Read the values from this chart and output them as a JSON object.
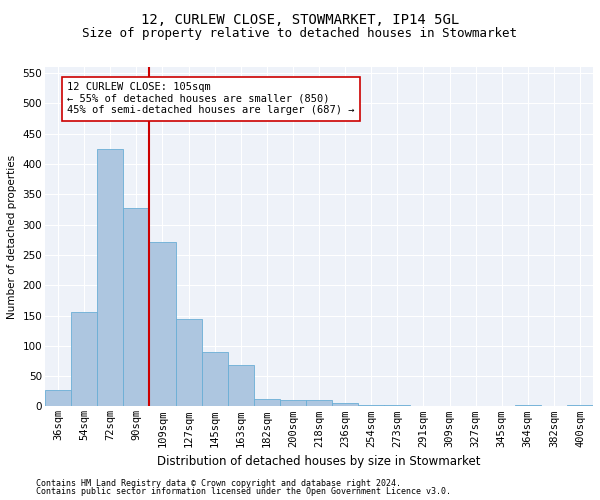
{
  "title1": "12, CURLEW CLOSE, STOWMARKET, IP14 5GL",
  "title2": "Size of property relative to detached houses in Stowmarket",
  "xlabel": "Distribution of detached houses by size in Stowmarket",
  "ylabel": "Number of detached properties",
  "categories": [
    "36sqm",
    "54sqm",
    "72sqm",
    "90sqm",
    "109sqm",
    "127sqm",
    "145sqm",
    "163sqm",
    "182sqm",
    "200sqm",
    "218sqm",
    "236sqm",
    "254sqm",
    "273sqm",
    "291sqm",
    "309sqm",
    "327sqm",
    "345sqm",
    "364sqm",
    "382sqm",
    "400sqm"
  ],
  "values": [
    27,
    155,
    425,
    327,
    271,
    145,
    90,
    68,
    13,
    10,
    10,
    5,
    2,
    2,
    1,
    1,
    0,
    0,
    3,
    0,
    3
  ],
  "bar_color": "#adc6e0",
  "bar_edge_color": "#6aaed6",
  "vline_color": "#cc0000",
  "annotation_text": "12 CURLEW CLOSE: 105sqm\n← 55% of detached houses are smaller (850)\n45% of semi-detached houses are larger (687) →",
  "ylim": [
    0,
    560
  ],
  "yticks": [
    0,
    50,
    100,
    150,
    200,
    250,
    300,
    350,
    400,
    450,
    500,
    550
  ],
  "footer1": "Contains HM Land Registry data © Crown copyright and database right 2024.",
  "footer2": "Contains public sector information licensed under the Open Government Licence v3.0.",
  "bg_color": "#eef2f9",
  "grid_color": "#ffffff",
  "title1_fontsize": 10,
  "title2_fontsize": 9,
  "axis_fontsize": 7.5,
  "ylabel_fontsize": 7.5,
  "xlabel_fontsize": 8.5,
  "annot_fontsize": 7.5,
  "footer_fontsize": 6
}
